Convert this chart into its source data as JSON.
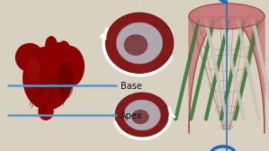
{
  "bg_color": "#d8d0c0",
  "heart_color": "#8b0000",
  "heart_shadow": "#5a0000",
  "heart_highlight": "#aa2020",
  "line_color": "#5599cc",
  "text_base": "Base",
  "text_apex": "Apex",
  "text_color": "#111111",
  "bowl_fill": "#c87878",
  "bowl_dark": "#a05050",
  "bowl_rim": "#d09080",
  "fiber_green": "#3a7a3a",
  "fiber_green2": "#5aaa5a",
  "fiber_white": "#c8c4b8",
  "arrow_color": "#2068b0",
  "cross_outer": "#6a0000",
  "cross_inner": "#c0c8d8",
  "cross_arrow": "#e8e8f0"
}
